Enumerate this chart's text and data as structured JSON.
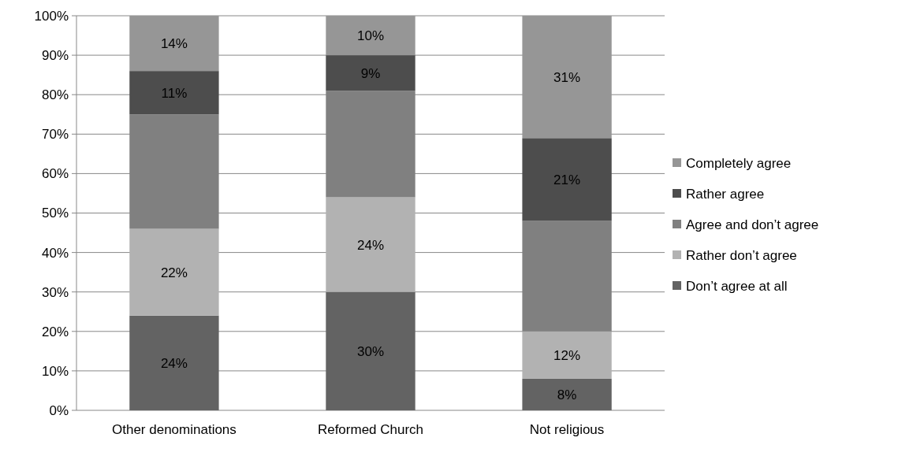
{
  "chart_data": {
    "type": "bar",
    "stacked": true,
    "categories": [
      "Other denominations",
      "Reformed Church",
      "Not religious"
    ],
    "series": [
      {
        "name": "Don’t agree at all",
        "color": "#636363",
        "values": [
          24,
          30,
          8
        ],
        "value_labels": [
          "24%",
          "30%",
          "8%"
        ]
      },
      {
        "name": "Rather don’t agree",
        "color": "#b2b2b2",
        "values": [
          22,
          24,
          12
        ],
        "value_labels": [
          "22%",
          "24%",
          "12%"
        ]
      },
      {
        "name": "Agree and don’t agree",
        "color": "#808080",
        "values": [
          29,
          27,
          28
        ],
        "value_labels": [
          null,
          null,
          null
        ]
      },
      {
        "name": "Rather agree",
        "color": "#4d4d4d",
        "values": [
          11,
          9,
          21
        ],
        "value_labels": [
          "11%",
          "9%",
          "21%"
        ]
      },
      {
        "name": "Completely agree",
        "color": "#969696",
        "values": [
          14,
          10,
          31
        ],
        "value_labels": [
          "14%",
          "10%",
          "31%"
        ]
      }
    ],
    "ylim": [
      0,
      100
    ],
    "yticks": [
      {
        "value": 0,
        "label": "0%"
      },
      {
        "value": 10,
        "label": "10%"
      },
      {
        "value": 20,
        "label": "20%"
      },
      {
        "value": 30,
        "label": "30%"
      },
      {
        "value": 40,
        "label": "40%"
      },
      {
        "value": 50,
        "label": "50%"
      },
      {
        "value": 60,
        "label": "60%"
      },
      {
        "value": 70,
        "label": "70%"
      },
      {
        "value": 80,
        "label": "80%"
      },
      {
        "value": 90,
        "label": "90%"
      },
      {
        "value": 100,
        "label": "100%"
      }
    ],
    "grid": "y",
    "legend": "right"
  }
}
